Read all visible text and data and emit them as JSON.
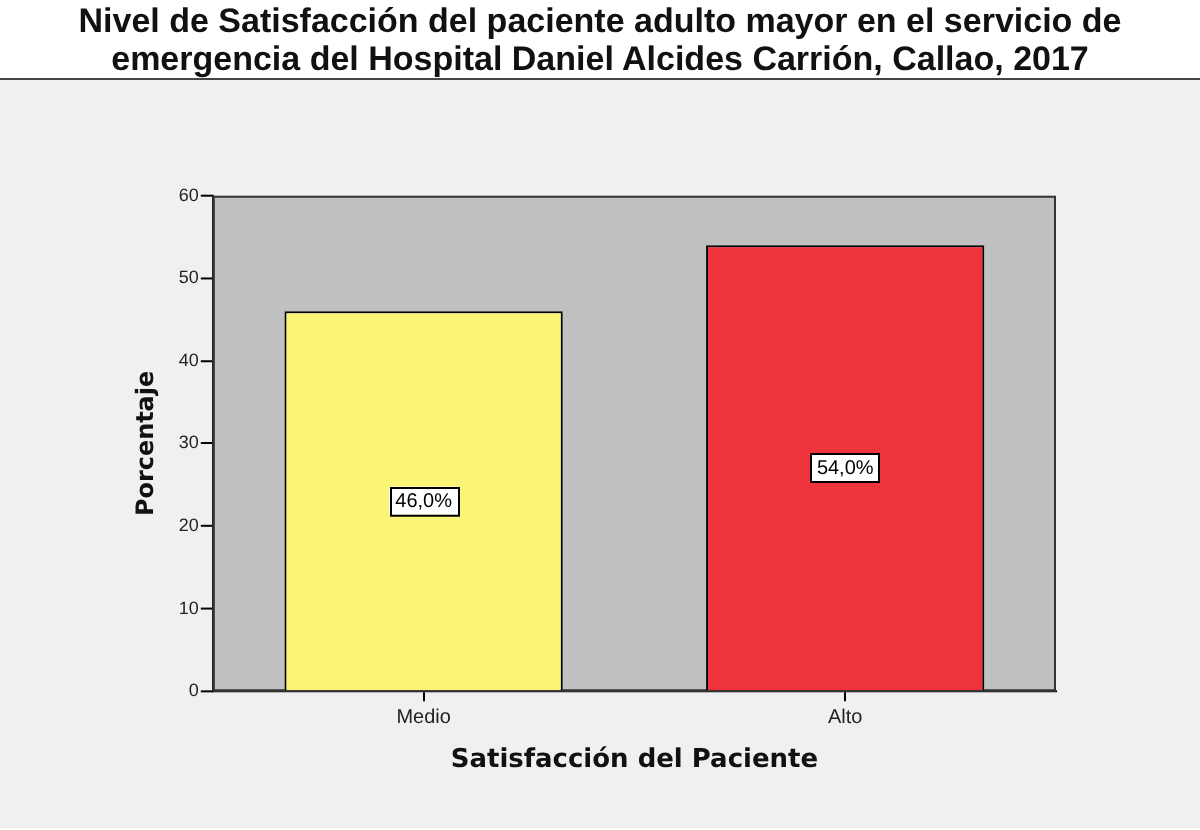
{
  "chart_data": {
    "type": "bar",
    "title": "Nivel de Satisfacción del paciente adulto mayor en el servicio de emergencia del Hospital Daniel Alcides Carrión, Callao, 2017",
    "xlabel": "Satisfacción del Paciente",
    "ylabel": "Porcentaje",
    "categories": [
      "Medio",
      "Alto"
    ],
    "values": [
      46.0,
      54.0
    ],
    "colors": [
      "#fbf577",
      "#ef333c"
    ],
    "value_labels": [
      "46,0%",
      "54,0%"
    ],
    "ylim": [
      0,
      60
    ],
    "yticks": [
      0,
      10,
      20,
      30,
      40,
      50,
      60
    ],
    "grid": false,
    "legend": false
  }
}
